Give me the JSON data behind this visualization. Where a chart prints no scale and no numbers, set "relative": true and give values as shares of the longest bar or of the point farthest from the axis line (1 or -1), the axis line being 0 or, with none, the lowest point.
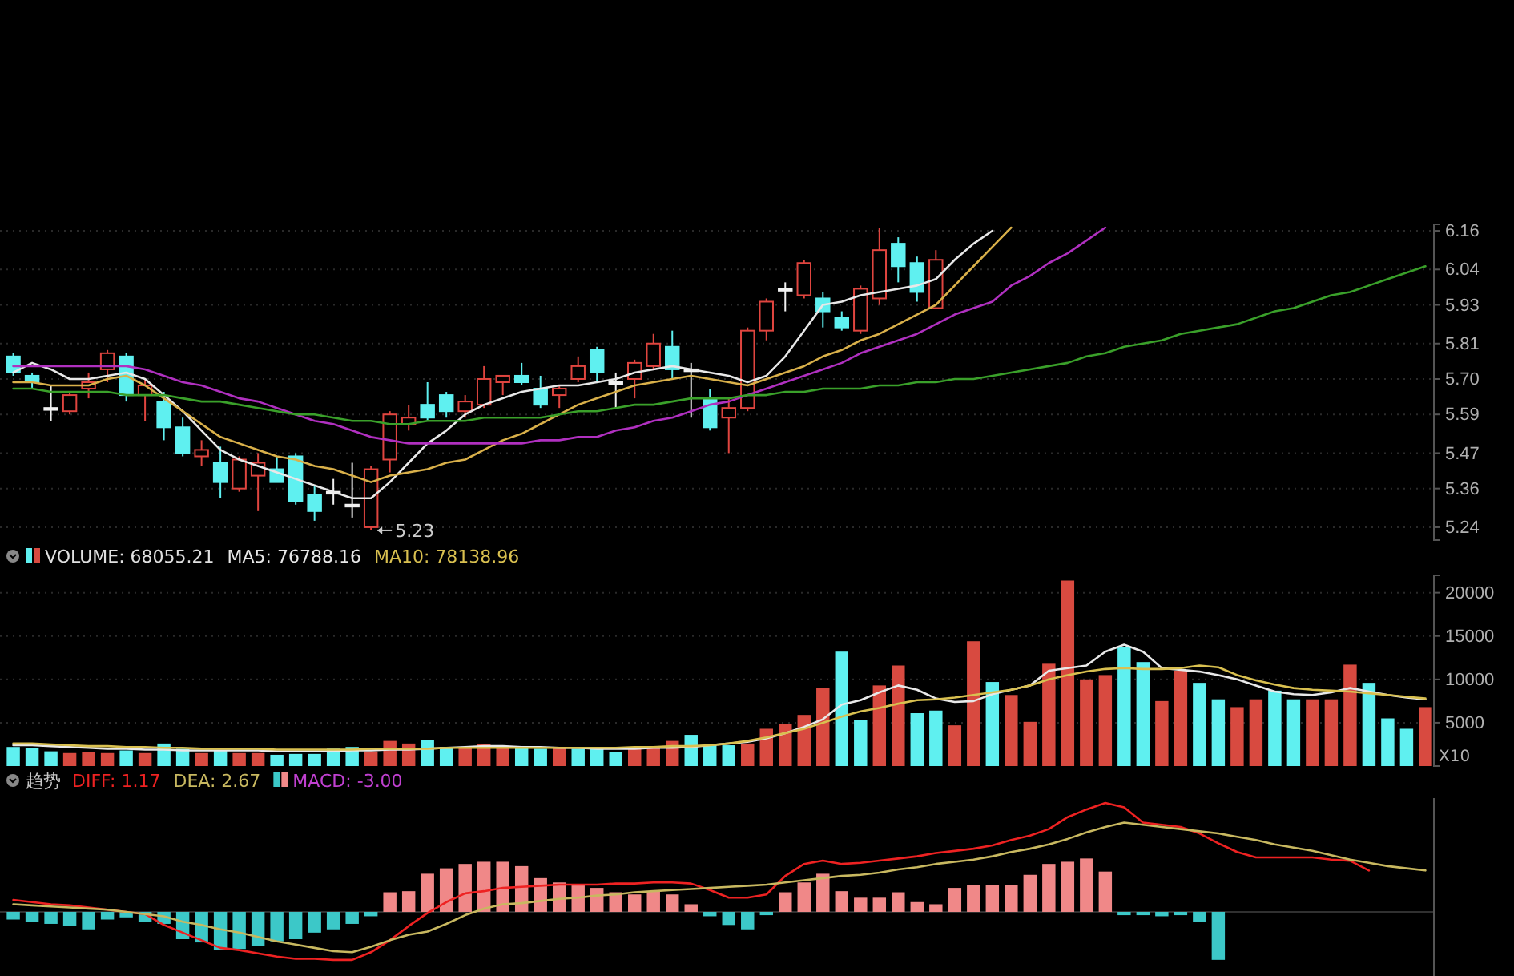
{
  "chart_data": [
    {
      "type": "candlestick",
      "categories": [
        null,
        null,
        null,
        null,
        null,
        null,
        null,
        null,
        null,
        null,
        null,
        null,
        null,
        null,
        null,
        null,
        null,
        null,
        null,
        null,
        null,
        null,
        null,
        null,
        null,
        null,
        null,
        null,
        null,
        null,
        null,
        null,
        null,
        null,
        null,
        null,
        null,
        null,
        null,
        null,
        null,
        null,
        null,
        null,
        null,
        null,
        null,
        null,
        null,
        null,
        null,
        null,
        null,
        null,
        null,
        null,
        null,
        null,
        null,
        null,
        null,
        null,
        null,
        null,
        null,
        null,
        null,
        null,
        null,
        null,
        null,
        null,
        null,
        null,
        null,
        null
      ],
      "ohlc": [
        [
          5.77,
          5.78,
          5.71,
          5.72
        ],
        [
          5.71,
          5.72,
          5.67,
          5.69
        ],
        [
          5.61,
          5.68,
          5.57,
          5.61
        ],
        [
          5.6,
          5.66,
          5.59,
          5.65
        ],
        [
          5.67,
          5.72,
          5.64,
          5.69
        ],
        [
          5.73,
          5.79,
          5.69,
          5.78
        ],
        [
          5.77,
          5.78,
          5.63,
          5.65
        ],
        [
          5.65,
          5.7,
          5.57,
          5.68
        ],
        [
          5.63,
          5.66,
          5.51,
          5.55
        ],
        [
          5.55,
          5.58,
          5.46,
          5.47
        ],
        [
          5.46,
          5.51,
          5.43,
          5.48
        ],
        [
          5.44,
          5.49,
          5.33,
          5.38
        ],
        [
          5.36,
          5.46,
          5.35,
          5.45
        ],
        [
          5.4,
          5.47,
          5.29,
          5.44
        ],
        [
          5.42,
          5.46,
          5.38,
          5.38
        ],
        [
          5.46,
          5.47,
          5.31,
          5.32
        ],
        [
          5.34,
          5.37,
          5.26,
          5.29
        ],
        [
          5.35,
          5.39,
          5.31,
          5.35
        ],
        [
          5.31,
          5.44,
          5.27,
          5.31
        ],
        [
          5.24,
          5.43,
          5.23,
          5.42
        ],
        [
          5.45,
          5.6,
          5.41,
          5.59
        ],
        [
          5.56,
          5.62,
          5.54,
          5.58
        ],
        [
          5.62,
          5.69,
          5.57,
          5.58
        ],
        [
          5.65,
          5.66,
          5.58,
          5.6
        ],
        [
          5.6,
          5.65,
          5.58,
          5.63
        ],
        [
          5.62,
          5.74,
          5.61,
          5.7
        ],
        [
          5.69,
          5.71,
          5.65,
          5.71
        ],
        [
          5.71,
          5.75,
          5.68,
          5.69
        ],
        [
          5.67,
          5.71,
          5.61,
          5.62
        ],
        [
          5.65,
          5.68,
          5.61,
          5.67
        ],
        [
          5.7,
          5.77,
          5.69,
          5.74
        ],
        [
          5.79,
          5.8,
          5.69,
          5.72
        ],
        [
          5.69,
          5.72,
          5.61,
          5.69
        ],
        [
          5.7,
          5.76,
          5.64,
          5.75
        ],
        [
          5.74,
          5.84,
          5.73,
          5.81
        ],
        [
          5.8,
          5.85,
          5.7,
          5.73
        ],
        [
          5.73,
          5.75,
          5.58,
          5.73
        ],
        [
          5.64,
          5.67,
          5.54,
          5.55
        ],
        [
          5.58,
          5.64,
          5.47,
          5.61
        ],
        [
          5.61,
          5.86,
          5.6,
          5.85
        ],
        [
          5.85,
          5.95,
          5.82,
          5.94
        ],
        [
          5.98,
          6.0,
          5.91,
          5.98
        ],
        [
          5.96,
          6.07,
          5.95,
          6.06
        ],
        [
          5.95,
          5.97,
          5.86,
          5.91
        ],
        [
          5.89,
          5.91,
          5.85,
          5.86
        ],
        [
          5.85,
          5.99,
          5.84,
          5.98
        ],
        [
          5.95,
          6.17,
          5.93,
          6.1
        ],
        [
          6.12,
          6.14,
          6.0,
          6.05
        ],
        [
          6.06,
          6.08,
          5.94,
          5.97
        ],
        [
          5.92,
          6.1,
          5.92,
          6.07
        ],
        null,
        null,
        null,
        null,
        null,
        null,
        null,
        null,
        null,
        null,
        null,
        null,
        null,
        null,
        null,
        null,
        null,
        null,
        null,
        null,
        null,
        null,
        null,
        null,
        null,
        null
      ],
      "series": [
        {
          "type": "line",
          "color": "#e8e8e8",
          "values": [
            5.72,
            5.75,
            5.73,
            5.7,
            5.7,
            5.71,
            5.72,
            5.7,
            5.65,
            5.6,
            5.54,
            5.48,
            5.45,
            5.43,
            5.41,
            5.39,
            5.37,
            5.35,
            5.33,
            5.33,
            5.38,
            5.44,
            5.5,
            5.54,
            5.59,
            5.62,
            5.64,
            5.66,
            5.67,
            5.68,
            5.68,
            5.69,
            5.7,
            5.72,
            5.73,
            5.74,
            5.73,
            5.72,
            5.71,
            5.69,
            5.71,
            5.77,
            5.85,
            5.93,
            5.94,
            5.96,
            5.97,
            5.98,
            5.99,
            6.01,
            6.07,
            6.12,
            6.16,
            null,
            null,
            null,
            null,
            null,
            null,
            null,
            null,
            null,
            null,
            null,
            null,
            null,
            null,
            null,
            null,
            null,
            null,
            null,
            null,
            null,
            null,
            null
          ]
        },
        {
          "type": "line",
          "color": "#d9b04a",
          "values": [
            5.69,
            5.69,
            5.68,
            5.68,
            5.68,
            5.7,
            5.71,
            5.68,
            5.64,
            5.6,
            5.56,
            5.52,
            5.5,
            5.48,
            5.46,
            5.45,
            5.43,
            5.42,
            5.4,
            5.38,
            5.4,
            5.41,
            5.42,
            5.44,
            5.45,
            5.48,
            5.51,
            5.53,
            5.56,
            5.59,
            5.62,
            5.64,
            5.66,
            5.68,
            5.69,
            5.7,
            5.71,
            5.7,
            5.69,
            5.68,
            5.7,
            5.72,
            5.74,
            5.77,
            5.79,
            5.82,
            5.84,
            5.87,
            5.9,
            5.93,
            5.99,
            6.05,
            6.11,
            6.17,
            null,
            null,
            null,
            null,
            null,
            null,
            null,
            null,
            null,
            null,
            null,
            null,
            null,
            null,
            null,
            null,
            null,
            null,
            null,
            null,
            null,
            null
          ]
        },
        {
          "type": "line",
          "color": "#b030c0",
          "values": [
            5.74,
            5.74,
            5.74,
            5.74,
            5.74,
            5.74,
            5.74,
            5.73,
            5.71,
            5.69,
            5.68,
            5.66,
            5.64,
            5.63,
            5.61,
            5.59,
            5.57,
            5.56,
            5.54,
            5.52,
            5.51,
            5.5,
            5.5,
            5.5,
            5.5,
            5.5,
            5.5,
            5.5,
            5.51,
            5.51,
            5.52,
            5.52,
            5.54,
            5.55,
            5.57,
            5.58,
            5.6,
            5.62,
            5.63,
            5.65,
            5.67,
            5.69,
            5.71,
            5.73,
            5.75,
            5.78,
            5.8,
            5.82,
            5.84,
            5.87,
            5.9,
            5.92,
            5.94,
            5.99,
            6.02,
            6.06,
            6.09,
            6.13,
            6.17,
            null,
            null,
            null,
            null,
            null,
            null,
            null,
            null,
            null,
            null,
            null,
            null,
            null,
            null,
            null,
            null,
            null
          ]
        },
        {
          "type": "line",
          "color": "#3aa02a",
          "values": [
            5.67,
            5.67,
            5.66,
            5.66,
            5.66,
            5.66,
            5.65,
            5.65,
            5.65,
            5.64,
            5.63,
            5.63,
            5.62,
            5.61,
            5.6,
            5.59,
            5.59,
            5.58,
            5.57,
            5.57,
            5.56,
            5.56,
            5.57,
            5.57,
            5.57,
            5.58,
            5.58,
            5.58,
            5.58,
            5.59,
            5.6,
            5.6,
            5.61,
            5.62,
            5.62,
            5.63,
            5.64,
            5.64,
            5.64,
            5.65,
            5.65,
            5.66,
            5.66,
            5.67,
            5.67,
            5.67,
            5.68,
            5.68,
            5.69,
            5.69,
            5.7,
            5.7,
            5.71,
            5.72,
            5.73,
            5.74,
            5.75,
            5.77,
            5.78,
            5.8,
            5.81,
            5.82,
            5.84,
            5.85,
            5.86,
            5.87,
            5.89,
            5.91,
            5.92,
            5.94,
            5.96,
            5.97,
            5.99,
            6.01,
            6.03,
            6.05
          ]
        }
      ],
      "ylim": [
        5.2,
        6.18
      ],
      "yticks": [
        5.24,
        5.36,
        5.47,
        5.59,
        {
          "value": 5.7,
          "label": "5.70"
        },
        5.81,
        5.93,
        6.04,
        6.16
      ],
      "grid": "y",
      "annotations": [
        "5.23"
      ]
    },
    {
      "type": "bar",
      "categories": [
        null,
        null,
        null,
        null,
        null,
        null,
        null,
        null,
        null,
        null,
        null,
        null,
        null,
        null,
        null,
        null,
        null,
        null,
        null,
        null,
        null,
        null,
        null,
        null,
        null,
        null,
        null,
        null,
        null,
        null,
        null,
        null,
        null,
        null,
        null,
        null,
        null,
        null,
        null,
        null,
        null,
        null,
        null,
        null,
        null,
        null,
        null,
        null,
        null,
        null,
        null,
        null,
        null,
        null,
        null,
        null,
        null,
        null,
        null,
        null,
        null,
        null,
        null,
        null,
        null,
        null,
        null,
        null,
        null,
        null,
        null,
        null,
        null,
        null,
        null,
        null
      ],
      "series": [
        {
          "name": "VOLUME: 68055.21",
          "color": "#e0e0e0",
          "colors": [
            "#5ff0f0",
            "#5ff0f0",
            "#5ff0f0",
            "#d84a40",
            "#d84a40",
            "#d84a40",
            "#5ff0f0",
            "#d84a40",
            "#5ff0f0",
            "#5ff0f0",
            "#d84a40",
            "#5ff0f0",
            "#d84a40",
            "#d84a40",
            "#5ff0f0",
            "#5ff0f0",
            "#5ff0f0",
            "#5ff0f0",
            "#5ff0f0",
            "#d84a40",
            "#d84a40",
            "#d84a40",
            "#5ff0f0",
            "#5ff0f0",
            "#d84a40",
            "#d84a40",
            "#d84a40",
            "#5ff0f0",
            "#5ff0f0",
            "#d84a40",
            "#5ff0f0",
            "#5ff0f0",
            "#5ff0f0",
            "#d84a40",
            "#d84a40",
            "#d84a40",
            "#5ff0f0",
            "#5ff0f0",
            "#5ff0f0",
            "#d84a40",
            "#d84a40",
            "#d84a40",
            "#d84a40",
            "#d84a40",
            "#5ff0f0",
            "#5ff0f0",
            "#d84a40",
            "#d84a40",
            "#5ff0f0",
            "#5ff0f0",
            "#d84a40",
            "#d84a40",
            "#5ff0f0",
            "#d84a40",
            "#d84a40",
            "#d84a40",
            "#d84a40",
            "#d84a40",
            "#d84a40",
            "#5ff0f0",
            "#5ff0f0",
            "#d84a40",
            "#d84a40",
            "#5ff0f0",
            "#5ff0f0",
            "#d84a40",
            "#d84a40",
            "#5ff0f0",
            "#5ff0f0",
            "#d84a40",
            "#d84a40",
            "#d84a40",
            "#5ff0f0",
            "#5ff0f0",
            "#5ff0f0",
            "#d84a40"
          ],
          "values": [
            2200,
            2100,
            1700,
            1500,
            1600,
            1500,
            1800,
            1500,
            2600,
            2000,
            1500,
            1800,
            1500,
            1500,
            1300,
            1400,
            1400,
            2000,
            2200,
            1700,
            2900,
            2600,
            3000,
            2200,
            2200,
            2500,
            2100,
            2200,
            2000,
            2100,
            2000,
            2200,
            1600,
            2000,
            2200,
            2900,
            3600,
            2400,
            2400,
            2600,
            4300,
            4900,
            5900,
            9000,
            13200,
            5300,
            9300,
            11600,
            6100,
            6400,
            4700,
            14400,
            9700,
            8200,
            5100,
            11800,
            21400,
            10000,
            10500,
            13700,
            12000,
            7500,
            11000,
            9600,
            7700,
            6800,
            7700,
            8700,
            7700,
            7700,
            7700,
            11700,
            9600,
            5500,
            4300,
            6800
          ]
        },
        {
          "type": "line",
          "name": "MA5: 76788.16",
          "color": "#e8e8e8",
          "values": [
            2400,
            2400,
            2300,
            2200,
            2100,
            2000,
            2000,
            1900,
            1900,
            1800,
            1800,
            1800,
            1800,
            1800,
            1700,
            1700,
            1700,
            1700,
            1800,
            1800,
            1900,
            1900,
            2000,
            2100,
            2200,
            2300,
            2300,
            2200,
            2200,
            2100,
            2100,
            2000,
            2000,
            2000,
            2100,
            2100,
            2200,
            2400,
            2600,
            2800,
            3200,
            3800,
            4500,
            5400,
            7100,
            7600,
            8500,
            9300,
            8800,
            7800,
            7400,
            7500,
            8300,
            8800,
            9300,
            11000,
            11300,
            11600,
            13200,
            14000,
            13200,
            11300,
            11100,
            10900,
            10500,
            10000,
            9300,
            8600,
            8300,
            8200,
            8500,
            9000,
            8600,
            8200,
            7900,
            7700
          ]
        },
        {
          "type": "line",
          "name": "MA10: 78138.96",
          "color": "#d9c050",
          "values": [
            2600,
            2600,
            2500,
            2400,
            2300,
            2300,
            2200,
            2200,
            2100,
            2100,
            2000,
            2000,
            2000,
            2000,
            1900,
            1900,
            1900,
            1900,
            1900,
            2000,
            2000,
            2000,
            2000,
            2100,
            2100,
            2100,
            2100,
            2100,
            2100,
            2100,
            2100,
            2100,
            2100,
            2200,
            2200,
            2300,
            2300,
            2400,
            2600,
            2900,
            3300,
            3800,
            4300,
            5000,
            5700,
            6300,
            6700,
            7200,
            7600,
            7700,
            7900,
            8200,
            8500,
            8800,
            9300,
            10000,
            10500,
            10900,
            11200,
            11300,
            11200,
            11200,
            11300,
            11600,
            11400,
            10500,
            9900,
            9400,
            9000,
            8800,
            8700,
            8600,
            8400,
            8200,
            8000,
            7800
          ]
        }
      ],
      "ylim": [
        0,
        22000
      ],
      "yticks": [
        5000,
        10000,
        15000,
        20000
      ],
      "grid": "y",
      "legend": "top left",
      "annotations": [
        "X10"
      ]
    },
    {
      "type": "bar",
      "relative": true,
      "title": "趋势",
      "categories": [
        null,
        null,
        null,
        null,
        null,
        null,
        null,
        null,
        null,
        null,
        null,
        null,
        null,
        null,
        null,
        null,
        null,
        null,
        null,
        null,
        null,
        null,
        null,
        null,
        null,
        null,
        null,
        null,
        null,
        null,
        null,
        null,
        null,
        null,
        null,
        null,
        null,
        null,
        null,
        null,
        null,
        null,
        null,
        null,
        null,
        null,
        null,
        null,
        null,
        null,
        null,
        null,
        null,
        null,
        null,
        null,
        null,
        null,
        null,
        null,
        null,
        null,
        null,
        null,
        null,
        null,
        null,
        null,
        null,
        null,
        null,
        null,
        null,
        null,
        null,
        null
      ],
      "series": [
        {
          "type": "line",
          "name": "DIFF: 1.17",
          "color": "#ee2222",
          "values": [
            0.11,
            0.09,
            0.07,
            0.06,
            0.04,
            0.02,
            0.0,
            -0.02,
            -0.12,
            -0.19,
            -0.26,
            -0.33,
            -0.35,
            -0.38,
            -0.41,
            -0.43,
            -0.43,
            -0.44,
            -0.44,
            -0.37,
            -0.26,
            -0.13,
            -0.01,
            0.09,
            0.17,
            0.19,
            0.22,
            0.23,
            0.24,
            0.25,
            0.25,
            0.25,
            0.26,
            0.26,
            0.27,
            0.27,
            0.26,
            0.2,
            0.13,
            0.13,
            0.16,
            0.33,
            0.44,
            0.47,
            0.44,
            0.45,
            0.47,
            0.49,
            0.51,
            0.54,
            0.56,
            0.58,
            0.61,
            0.66,
            0.7,
            0.76,
            0.87,
            0.94,
            1.0,
            0.96,
            0.82,
            0.8,
            0.78,
            0.72,
            0.63,
            0.55,
            0.5,
            0.5,
            0.5,
            0.5,
            0.48,
            0.47,
            0.38,
            null,
            null,
            null
          ]
        },
        {
          "type": "line",
          "name": "DEA: 2.67",
          "color": "#c8b860",
          "values": [
            0.07,
            0.06,
            0.05,
            0.04,
            0.03,
            0.02,
            0.0,
            -0.02,
            -0.04,
            -0.09,
            -0.12,
            -0.16,
            -0.19,
            -0.23,
            -0.27,
            -0.3,
            -0.33,
            -0.36,
            -0.37,
            -0.32,
            -0.26,
            -0.21,
            -0.18,
            -0.11,
            -0.03,
            0.03,
            0.07,
            0.08,
            0.1,
            0.12,
            0.13,
            0.15,
            0.16,
            0.18,
            0.19,
            0.2,
            0.21,
            0.22,
            0.23,
            0.24,
            0.25,
            0.27,
            0.29,
            0.31,
            0.33,
            0.34,
            0.36,
            0.39,
            0.41,
            0.44,
            0.46,
            0.48,
            0.51,
            0.55,
            0.58,
            0.62,
            0.67,
            0.73,
            0.78,
            0.82,
            0.8,
            0.78,
            0.76,
            0.74,
            0.72,
            0.69,
            0.66,
            0.62,
            0.59,
            0.56,
            0.52,
            0.48,
            0.45,
            0.42,
            0.4,
            0.38
          ]
        },
        {
          "name": "MACD: -3.00",
          "color": "#c040d0",
          "colors": [
            "#3cc8c8",
            "#3cc8c8",
            "#3cc8c8",
            "#3cc8c8",
            "#3cc8c8",
            "#3cc8c8",
            "#3cc8c8",
            "#3cc8c8",
            "#3cc8c8",
            "#3cc8c8",
            "#3cc8c8",
            "#3cc8c8",
            "#3cc8c8",
            "#3cc8c8",
            "#3cc8c8",
            "#3cc8c8",
            "#3cc8c8",
            "#3cc8c8",
            "#3cc8c8",
            "#3cc8c8",
            "#f08888",
            "#f08888",
            "#f08888",
            "#f08888",
            "#f08888",
            "#f08888",
            "#f08888",
            "#f08888",
            "#f08888",
            "#f08888",
            "#f08888",
            "#f08888",
            "#f08888",
            "#f08888",
            "#f08888",
            "#f08888",
            "#f08888",
            "#3cc8c8",
            "#3cc8c8",
            "#3cc8c8",
            "#3cc8c8",
            "#f08888",
            "#f08888",
            "#f08888",
            "#f08888",
            "#f08888",
            "#f08888",
            "#f08888",
            "#f08888",
            "#f08888",
            "#f08888",
            "#f08888",
            "#f08888",
            "#f08888",
            "#f08888",
            "#f08888",
            "#f08888",
            "#f08888",
            "#f08888",
            "#3cc8c8",
            "#3cc8c8",
            "#3cc8c8",
            "#3cc8c8",
            "#3cc8c8",
            "#3cc8c8",
            null,
            null,
            null,
            null,
            null,
            null,
            null,
            null,
            null,
            null,
            null
          ],
          "values": [
            -0.07,
            -0.09,
            -0.11,
            -0.13,
            -0.16,
            -0.07,
            -0.05,
            -0.09,
            -0.11,
            -0.25,
            -0.28,
            -0.35,
            -0.34,
            -0.31,
            -0.27,
            -0.25,
            -0.19,
            -0.16,
            -0.11,
            -0.04,
            0.18,
            0.19,
            0.35,
            0.4,
            0.44,
            0.46,
            0.46,
            0.42,
            0.31,
            0.27,
            0.25,
            0.22,
            0.18,
            0.16,
            0.19,
            0.16,
            0.07,
            -0.04,
            -0.12,
            -0.16,
            -0.03,
            0.18,
            0.27,
            0.35,
            0.19,
            0.13,
            0.13,
            0.18,
            0.09,
            0.07,
            0.22,
            0.25,
            0.25,
            0.25,
            0.34,
            0.44,
            0.46,
            0.49,
            0.37,
            -0.03,
            -0.03,
            -0.04,
            -0.03,
            -0.09,
            -0.44,
            null,
            null,
            null,
            null,
            null,
            null,
            null,
            null,
            null,
            null,
            null
          ]
        }
      ],
      "legend": "top left"
    }
  ]
}
